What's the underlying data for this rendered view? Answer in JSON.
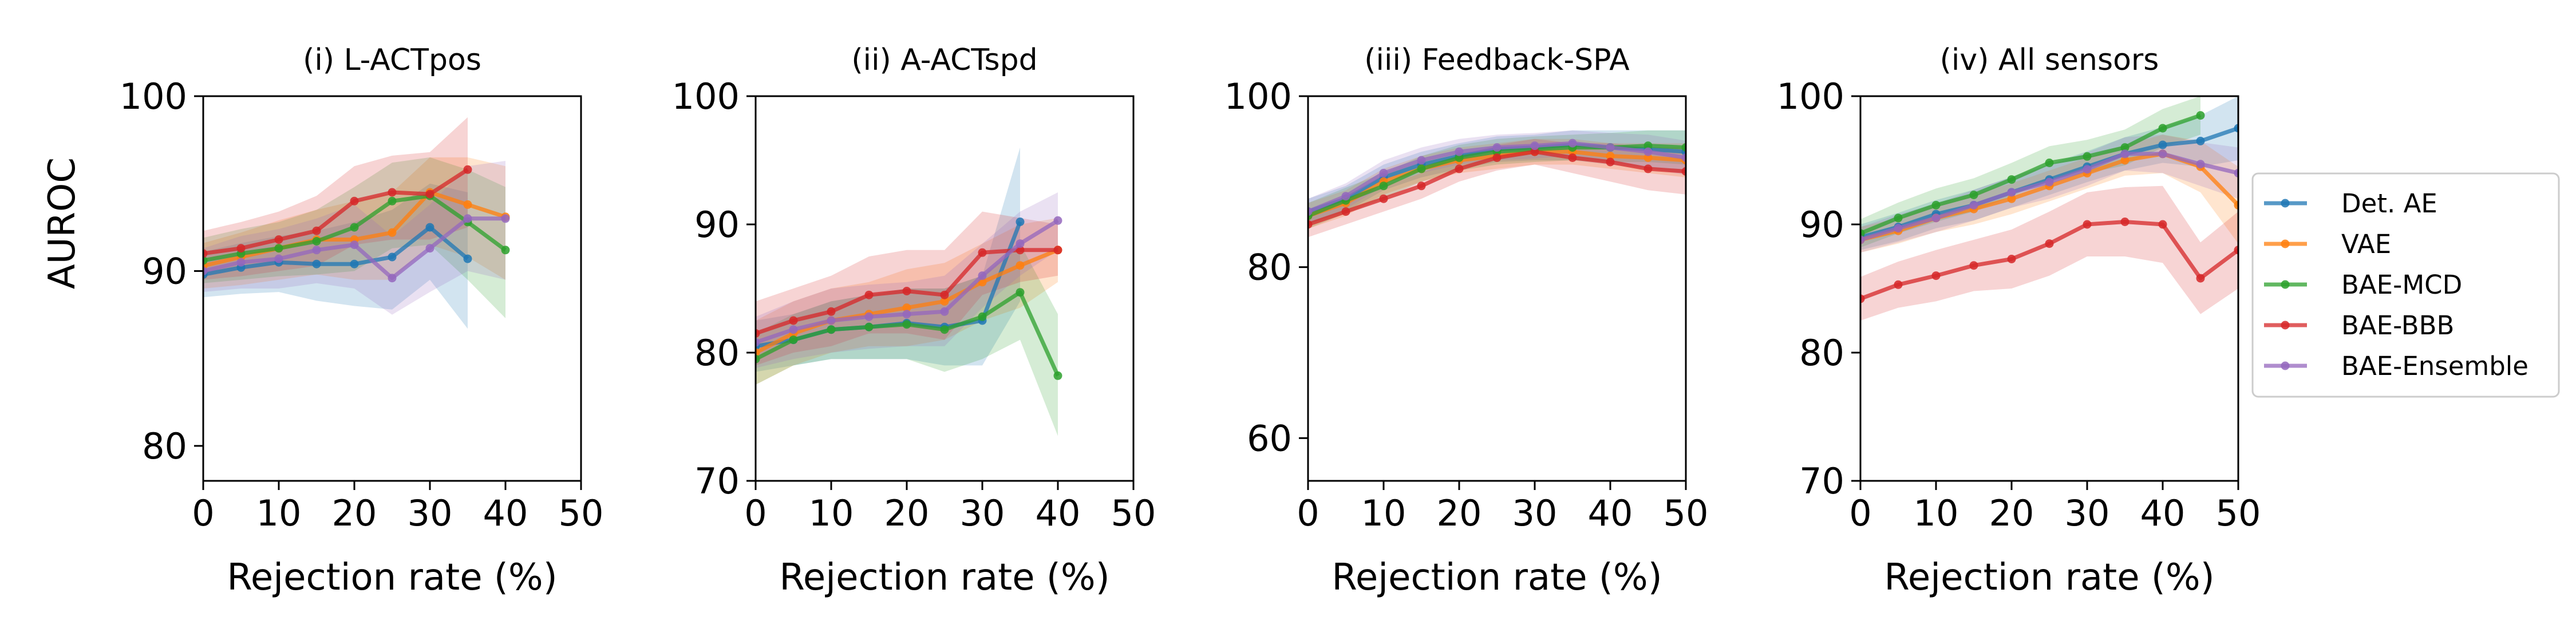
{
  "ylabel": "AUROC",
  "xlabel": "Rejection rate (%)",
  "chart_data": [
    {
      "type": "line",
      "title": "(i) L-ACTpos",
      "xlabel": "Rejection rate (%)",
      "ylabel": "AUROC",
      "xlim": [
        0,
        50
      ],
      "ylim": [
        78,
        100
      ],
      "xticks": [
        0,
        10,
        20,
        30,
        40,
        50
      ],
      "yticks": [
        80,
        90,
        100
      ],
      "series": [
        {
          "name": "Det. AE",
          "x": [
            0,
            5,
            10,
            15,
            20,
            25,
            30,
            35
          ],
          "y": [
            89.8,
            90.2,
            90.5,
            90.4,
            90.4,
            90.8,
            92.5,
            90.7
          ],
          "lo": [
            88.5,
            88.7,
            88.8,
            88.3,
            88.0,
            87.8,
            89.5,
            86.7
          ],
          "hi": [
            91.1,
            91.6,
            92.0,
            92.3,
            92.8,
            93.5,
            95.0,
            94.5
          ]
        },
        {
          "name": "VAE",
          "x": [
            0,
            5,
            10,
            15,
            20,
            25,
            30,
            35,
            40
          ],
          "y": [
            90.3,
            90.8,
            91.3,
            91.8,
            91.8,
            92.2,
            94.5,
            93.8,
            93.1
          ],
          "lo": [
            89.0,
            89.2,
            89.5,
            89.8,
            89.5,
            89.5,
            91.5,
            90.8,
            89.5
          ],
          "hi": [
            91.6,
            92.2,
            92.9,
            93.5,
            94.0,
            94.5,
            96.5,
            96.5,
            96.0
          ]
        },
        {
          "name": "BAE-MCD",
          "x": [
            0,
            5,
            10,
            15,
            20,
            25,
            30,
            35,
            40
          ],
          "y": [
            90.6,
            91.0,
            91.3,
            91.7,
            92.5,
            94.0,
            94.3,
            92.8,
            91.2
          ],
          "lo": [
            89.3,
            89.5,
            89.7,
            89.8,
            90.0,
            91.3,
            91.5,
            89.5,
            87.3
          ],
          "hi": [
            91.9,
            92.4,
            92.8,
            93.5,
            94.8,
            96.2,
            96.5,
            95.8,
            94.8
          ]
        },
        {
          "name": "BAE-BBB",
          "x": [
            0,
            5,
            10,
            15,
            20,
            25,
            30,
            35
          ],
          "y": [
            91.0,
            91.3,
            91.8,
            92.3,
            94.0,
            94.5,
            94.4,
            95.8
          ],
          "lo": [
            89.5,
            89.7,
            90.0,
            90.3,
            91.5,
            91.8,
            91.8,
            92.5
          ],
          "hi": [
            92.3,
            92.8,
            93.4,
            94.3,
            96.0,
            96.6,
            96.8,
            98.8
          ]
        },
        {
          "name": "BAE-Ensemble",
          "x": [
            0,
            5,
            10,
            15,
            20,
            25,
            30,
            35,
            40
          ],
          "y": [
            90.0,
            90.5,
            90.7,
            91.2,
            91.5,
            89.6,
            91.3,
            93.0,
            93.0
          ],
          "lo": [
            88.8,
            89.0,
            89.0,
            89.3,
            89.0,
            87.5,
            88.8,
            90.0,
            89.5
          ],
          "hi": [
            91.3,
            92.0,
            92.4,
            93.0,
            93.8,
            92.0,
            93.8,
            96.0,
            96.3
          ]
        }
      ]
    },
    {
      "type": "line",
      "title": "(ii) A-ACTspd",
      "xlabel": "Rejection rate (%)",
      "ylabel": "",
      "xlim": [
        0,
        50
      ],
      "ylim": [
        70,
        100
      ],
      "xticks": [
        0,
        10,
        20,
        30,
        40,
        50
      ],
      "yticks": [
        70,
        80,
        90,
        100
      ],
      "series": [
        {
          "name": "Det. AE",
          "x": [
            0,
            5,
            10,
            15,
            20,
            25,
            30,
            35
          ],
          "y": [
            80.5,
            81.0,
            81.8,
            82.0,
            82.3,
            82.0,
            82.5,
            90.2
          ],
          "lo": [
            78.5,
            79.0,
            79.5,
            79.5,
            79.5,
            79.0,
            79.0,
            84.0
          ],
          "hi": [
            82.5,
            83.0,
            84.0,
            84.5,
            85.0,
            85.0,
            86.0,
            96.0
          ]
        },
        {
          "name": "VAE",
          "x": [
            0,
            5,
            10,
            15,
            20,
            25,
            30,
            35,
            40
          ],
          "y": [
            80.0,
            81.5,
            82.5,
            83.0,
            83.5,
            84.0,
            85.5,
            86.8,
            88.0
          ],
          "lo": [
            77.5,
            79.0,
            80.0,
            80.5,
            80.5,
            81.0,
            82.5,
            83.5,
            85.5
          ],
          "hi": [
            82.5,
            84.0,
            85.0,
            85.5,
            86.5,
            87.0,
            88.5,
            90.0,
            90.5
          ]
        },
        {
          "name": "BAE-MCD",
          "x": [
            0,
            5,
            10,
            15,
            20,
            25,
            30,
            35,
            40
          ],
          "y": [
            79.5,
            81.0,
            81.8,
            82.0,
            82.2,
            81.8,
            82.8,
            84.7,
            78.2
          ],
          "lo": [
            77.5,
            79.0,
            79.5,
            79.5,
            79.5,
            78.5,
            79.5,
            81.0,
            73.5
          ],
          "hi": [
            81.5,
            83.0,
            84.0,
            84.5,
            85.0,
            85.0,
            86.0,
            88.5,
            83.0
          ]
        },
        {
          "name": "BAE-BBB",
          "x": [
            0,
            5,
            10,
            15,
            20,
            25,
            30,
            35,
            40
          ],
          "y": [
            81.5,
            82.5,
            83.2,
            84.5,
            84.8,
            84.5,
            87.8,
            88.0,
            88.0
          ],
          "lo": [
            79.0,
            80.0,
            80.5,
            81.5,
            81.5,
            81.0,
            84.5,
            85.5,
            86.0
          ],
          "hi": [
            84.0,
            85.0,
            86.0,
            87.5,
            88.0,
            88.0,
            91.0,
            90.5,
            90.0
          ]
        },
        {
          "name": "BAE-Ensemble",
          "x": [
            0,
            5,
            10,
            15,
            20,
            25,
            30,
            35,
            40
          ],
          "y": [
            80.8,
            81.8,
            82.5,
            82.8,
            83.0,
            83.2,
            86.0,
            88.5,
            90.3
          ],
          "lo": [
            78.8,
            79.5,
            80.0,
            80.3,
            80.5,
            80.5,
            83.5,
            86.0,
            88.0
          ],
          "hi": [
            82.8,
            84.0,
            85.0,
            85.3,
            85.5,
            86.0,
            88.5,
            91.0,
            92.5
          ]
        }
      ]
    },
    {
      "type": "line",
      "title": "(iii) Feedback-SPA",
      "xlabel": "Rejection rate (%)",
      "ylabel": "",
      "xlim": [
        0,
        50
      ],
      "ylim": [
        55,
        100
      ],
      "xticks": [
        0,
        10,
        20,
        30,
        40,
        50
      ],
      "yticks": [
        60,
        80,
        100
      ],
      "series": [
        {
          "name": "Det. AE",
          "x": [
            0,
            5,
            10,
            15,
            20,
            25,
            30,
            35,
            40,
            45,
            50
          ],
          "y": [
            86.5,
            88.0,
            90.5,
            92.0,
            93.0,
            93.8,
            94.0,
            94.3,
            94.0,
            93.8,
            93.5
          ],
          "lo": [
            85.0,
            86.5,
            89.0,
            90.5,
            91.5,
            92.3,
            92.5,
            92.5,
            92.0,
            91.5,
            91.0
          ],
          "hi": [
            88.0,
            89.5,
            92.0,
            93.5,
            94.5,
            95.3,
            95.5,
            96.0,
            96.0,
            96.0,
            96.0
          ]
        },
        {
          "name": "VAE",
          "x": [
            0,
            5,
            10,
            15,
            20,
            25,
            30,
            35,
            40,
            45,
            50
          ],
          "y": [
            86.0,
            87.5,
            90.0,
            91.5,
            92.5,
            93.0,
            93.5,
            93.5,
            93.0,
            92.8,
            92.5
          ],
          "lo": [
            84.5,
            86.0,
            88.5,
            90.0,
            91.0,
            91.5,
            92.0,
            92.0,
            91.5,
            91.0,
            90.5
          ],
          "hi": [
            87.5,
            89.0,
            91.5,
            93.0,
            94.0,
            94.5,
            95.0,
            95.0,
            94.5,
            94.5,
            94.5
          ]
        },
        {
          "name": "BAE-MCD",
          "x": [
            0,
            5,
            10,
            15,
            20,
            25,
            30,
            35,
            40,
            45,
            50
          ],
          "y": [
            86.0,
            87.8,
            89.5,
            91.5,
            92.8,
            93.5,
            93.8,
            94.0,
            94.0,
            94.2,
            94.0
          ],
          "lo": [
            84.5,
            86.3,
            88.0,
            90.0,
            91.3,
            92.0,
            92.3,
            92.5,
            92.3,
            92.3,
            92.0
          ],
          "hi": [
            87.5,
            89.3,
            91.0,
            93.0,
            94.3,
            95.0,
            95.3,
            95.5,
            95.7,
            96.0,
            96.0
          ]
        },
        {
          "name": "BAE-BBB",
          "x": [
            0,
            5,
            10,
            15,
            20,
            25,
            30,
            35,
            40,
            45,
            50
          ],
          "y": [
            85.0,
            86.5,
            88.0,
            89.5,
            91.5,
            92.8,
            93.5,
            92.8,
            92.3,
            91.5,
            91.2
          ],
          "lo": [
            83.5,
            85.0,
            86.5,
            88.0,
            90.0,
            91.3,
            92.0,
            91.0,
            90.0,
            89.0,
            88.5
          ],
          "hi": [
            86.5,
            88.0,
            89.5,
            91.0,
            93.0,
            94.3,
            95.0,
            94.5,
            94.5,
            94.0,
            94.0
          ]
        },
        {
          "name": "BAE-Ensemble",
          "x": [
            0,
            5,
            10,
            15,
            20,
            25,
            30,
            35,
            40,
            45,
            50
          ],
          "y": [
            86.5,
            88.3,
            91.0,
            92.5,
            93.5,
            94.0,
            94.2,
            94.5,
            94.0,
            93.5,
            92.8
          ],
          "lo": [
            85.0,
            86.8,
            89.5,
            91.0,
            92.0,
            92.5,
            92.7,
            93.0,
            92.3,
            91.5,
            90.8
          ],
          "hi": [
            88.0,
            89.8,
            92.5,
            94.0,
            95.0,
            95.5,
            95.7,
            96.0,
            95.7,
            95.5,
            94.8
          ]
        }
      ]
    },
    {
      "type": "line",
      "title": "(iv) All sensors",
      "xlabel": "Rejection rate (%)",
      "ylabel": "",
      "xlim": [
        0,
        50
      ],
      "ylim": [
        70,
        100
      ],
      "xticks": [
        0,
        10,
        20,
        30,
        40,
        50
      ],
      "yticks": [
        70,
        80,
        90,
        100
      ],
      "series": [
        {
          "name": "Det. AE",
          "x": [
            0,
            5,
            10,
            15,
            20,
            25,
            30,
            35,
            40,
            45,
            50
          ],
          "y": [
            89.0,
            89.8,
            90.8,
            91.5,
            92.5,
            93.5,
            94.5,
            95.5,
            96.2,
            96.5,
            97.5
          ],
          "lo": [
            88.0,
            88.7,
            89.7,
            90.3,
            91.3,
            92.3,
            93.3,
            94.2,
            94.8,
            94.5,
            95.0
          ],
          "hi": [
            90.0,
            90.9,
            91.9,
            92.7,
            93.7,
            94.7,
            95.7,
            96.8,
            97.6,
            98.5,
            100.0
          ]
        },
        {
          "name": "VAE",
          "x": [
            0,
            5,
            10,
            15,
            20,
            25,
            30,
            35,
            40,
            45,
            50
          ],
          "y": [
            88.8,
            89.5,
            90.5,
            91.2,
            92.0,
            93.0,
            94.0,
            95.0,
            95.5,
            94.5,
            91.5
          ],
          "lo": [
            87.8,
            88.5,
            89.4,
            90.0,
            90.8,
            91.8,
            92.8,
            93.8,
            94.0,
            92.5,
            88.5
          ],
          "hi": [
            89.8,
            90.5,
            91.6,
            92.4,
            93.2,
            94.2,
            95.2,
            96.2,
            97.0,
            96.5,
            94.5
          ]
        },
        {
          "name": "BAE-MCD",
          "x": [
            0,
            5,
            10,
            15,
            20,
            25,
            30,
            35,
            40,
            45
          ],
          "y": [
            89.3,
            90.5,
            91.5,
            92.3,
            93.5,
            94.8,
            95.3,
            96.0,
            97.5,
            98.5
          ],
          "lo": [
            88.2,
            89.3,
            90.2,
            91.0,
            92.2,
            93.5,
            94.0,
            94.6,
            96.0,
            97.0
          ],
          "hi": [
            90.4,
            91.7,
            92.8,
            93.6,
            94.8,
            96.1,
            96.6,
            97.4,
            99.0,
            100.0
          ]
        },
        {
          "name": "BAE-BBB",
          "x": [
            0,
            5,
            10,
            15,
            20,
            25,
            30,
            35,
            40,
            45,
            50
          ],
          "y": [
            84.2,
            85.3,
            86.0,
            86.8,
            87.3,
            88.5,
            90.0,
            90.2,
            90.0,
            85.8,
            88.0
          ],
          "lo": [
            82.5,
            83.5,
            84.0,
            84.8,
            85.0,
            86.0,
            87.5,
            87.5,
            87.0,
            83.0,
            85.0
          ],
          "hi": [
            85.9,
            87.1,
            88.0,
            88.8,
            89.6,
            91.0,
            92.5,
            92.9,
            93.0,
            88.6,
            91.0
          ]
        },
        {
          "name": "BAE-Ensemble",
          "x": [
            0,
            5,
            10,
            15,
            20,
            25,
            30,
            35,
            40,
            45,
            50
          ],
          "y": [
            88.8,
            89.7,
            90.5,
            91.5,
            92.5,
            93.3,
            94.3,
            95.5,
            95.5,
            94.7,
            94.0
          ],
          "lo": [
            87.8,
            88.6,
            89.4,
            90.3,
            91.3,
            92.0,
            93.0,
            94.2,
            94.0,
            93.0,
            92.0
          ],
          "hi": [
            89.8,
            90.8,
            91.6,
            92.7,
            93.7,
            94.6,
            95.6,
            96.8,
            97.0,
            96.4,
            96.0
          ]
        }
      ]
    }
  ],
  "legend": {
    "placement": "right of last panel",
    "entries": [
      {
        "name": "Det. AE",
        "color": "#1f77b4"
      },
      {
        "name": "VAE",
        "color": "#ff7f0e"
      },
      {
        "name": "BAE-MCD",
        "color": "#2ca02c"
      },
      {
        "name": "BAE-BBB",
        "color": "#d62728"
      },
      {
        "name": "BAE-Ensemble",
        "color": "#9467bd"
      }
    ]
  }
}
